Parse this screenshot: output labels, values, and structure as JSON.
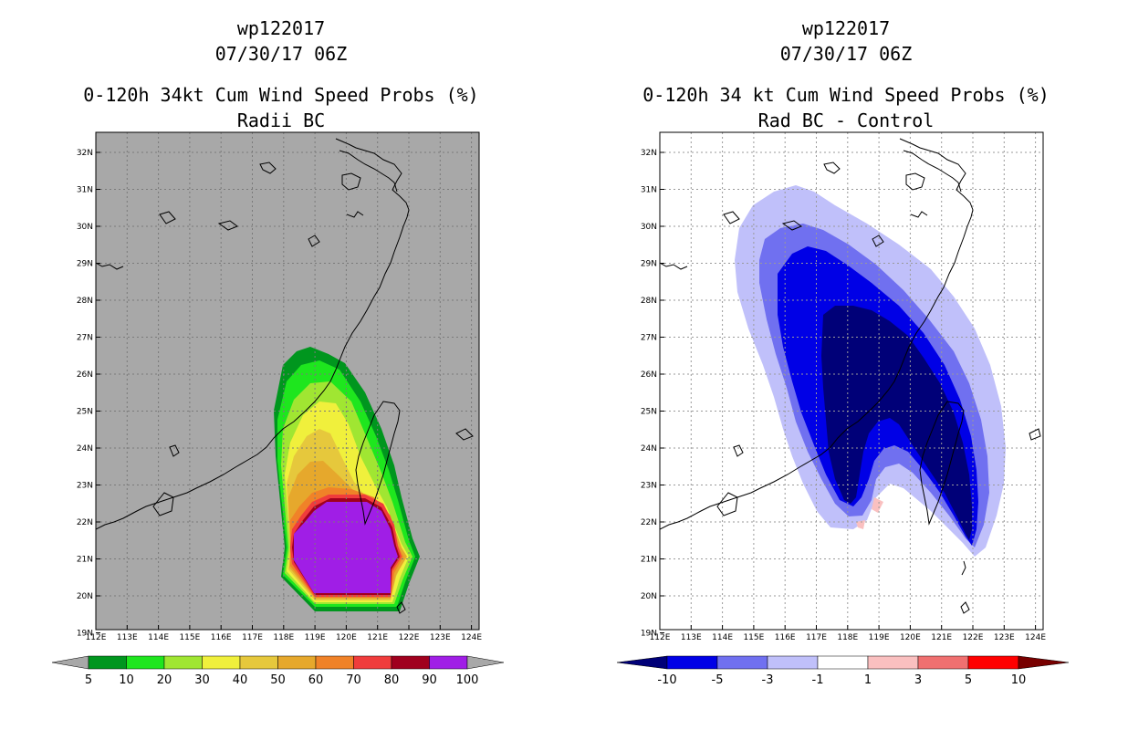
{
  "left_panel": {
    "title_line1": "wp122017",
    "title_line2": "07/30/17 06Z",
    "title_line3": "0-120h 34kt Cum Wind Speed Probs (%)",
    "title_line4": "Radii BC",
    "background_color": "#a8a8a8",
    "colorbar": {
      "labels": [
        "5",
        "10",
        "20",
        "30",
        "40",
        "50",
        "60",
        "70",
        "80",
        "90",
        "100"
      ],
      "colors": [
        "#00961e",
        "#1ee61e",
        "#a0e632",
        "#f0f03c",
        "#e6c83c",
        "#e6a82c",
        "#f08228",
        "#f03c3c",
        "#a0001e",
        "#a01ee6"
      ]
    }
  },
  "right_panel": {
    "title_line1": "wp122017",
    "title_line2": "07/30/17 06Z",
    "title_line3": "0-120h 34 kt Cum Wind Speed Probs (%)",
    "title_line4": "Rad BC - Control",
    "background_color": "#ffffff",
    "colorbar": {
      "labels": [
        "-10",
        "-5",
        "-3",
        "-1",
        "1",
        "3",
        "5",
        "10"
      ],
      "colors": [
        "#0000e6",
        "#7070f0",
        "#c0c0fa",
        "#ffffff",
        "#fac0c0",
        "#f07070",
        "#ff0000"
      ],
      "low_extend_color": "#000078",
      "high_extend_color": "#780000"
    }
  },
  "axes": {
    "lat_labels": [
      "32N",
      "31N",
      "30N",
      "29N",
      "28N",
      "27N",
      "26N",
      "25N",
      "24N",
      "23N",
      "22N",
      "21N",
      "20N",
      "19N"
    ],
    "lon_labels": [
      "112E",
      "113E",
      "114E",
      "115E",
      "116E",
      "117E",
      "118E",
      "119E",
      "120E",
      "121E",
      "122E",
      "123E",
      "124E"
    ]
  }
}
